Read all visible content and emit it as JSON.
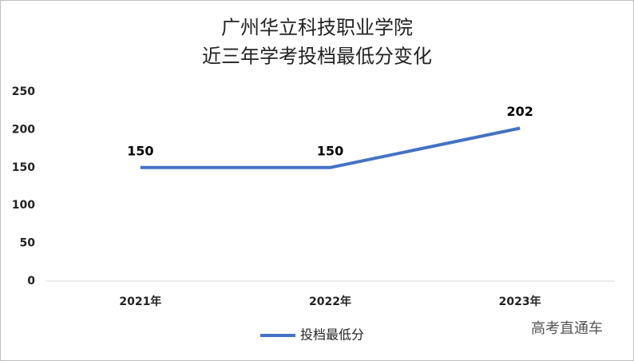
{
  "chart_data": {
    "type": "line",
    "title": [
      "广州华立科技职业学院",
      "近三年学考投档最低分变化"
    ],
    "categories": [
      "2021年",
      "2022年",
      "2023年"
    ],
    "series": [
      {
        "name": "投档最低分",
        "color": "#4472c4",
        "values": [
          150,
          150,
          202
        ]
      }
    ],
    "ylim": [
      0,
      250
    ],
    "yticks": [
      0,
      50,
      100,
      150,
      200,
      250
    ],
    "grid": false,
    "legend": "bottom",
    "data_labels": true,
    "watermark": "高考直通车"
  }
}
